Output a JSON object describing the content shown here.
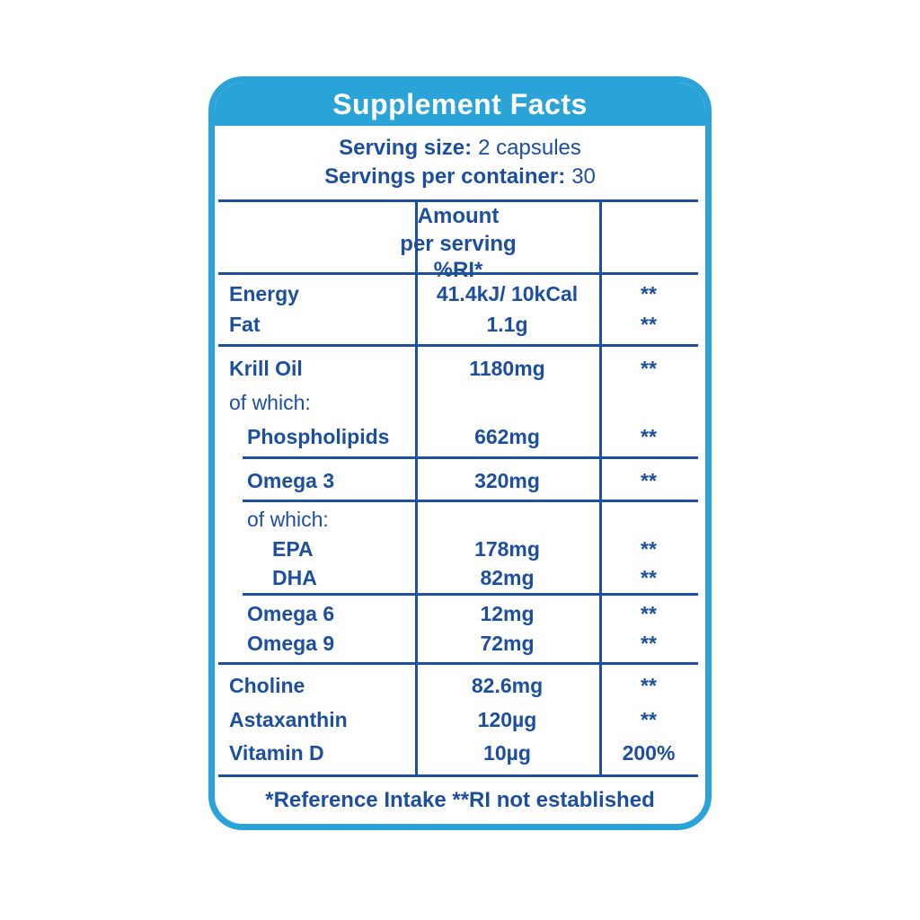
{
  "colors": {
    "accent_cyan": "#2aa3d8",
    "text_blue": "#1c4f9e",
    "rule_blue": "#1d509f",
    "header_text": "#ffffff",
    "background": "#ffffff"
  },
  "panel": {
    "title": "Supplement Facts",
    "serving_size_label": "Serving size:",
    "serving_size_value": "2 capsules",
    "servings_per_container_label": "Servings per container:",
    "servings_per_container_value": "30",
    "footer_note": "*Reference Intake **RI not established"
  },
  "table": {
    "header": {
      "amount_line1": "Amount",
      "amount_line2": "per serving",
      "ri_label": "%RI*"
    },
    "groups": [
      {
        "rows": [
          {
            "label": "Energy",
            "amount": "41.4kJ/ 10kCal",
            "ri": "**"
          },
          {
            "label": "Fat",
            "amount": "1.1g",
            "ri": "**"
          }
        ]
      },
      {
        "rows": [
          {
            "label": "Krill Oil",
            "amount": "1180mg",
            "ri": "**"
          },
          {
            "label": "of which:",
            "amount": "",
            "ri": ""
          },
          {
            "label": "Phospholipids",
            "amount": "662mg",
            "ri": "**"
          }
        ]
      },
      {
        "rows": [
          {
            "label": "Omega 3",
            "amount": "320mg",
            "ri": "**"
          }
        ]
      },
      {
        "rows": [
          {
            "label": "of which:",
            "amount": "",
            "ri": ""
          },
          {
            "label": "EPA",
            "amount": "178mg",
            "ri": "**"
          },
          {
            "label": "DHA",
            "amount": "82mg",
            "ri": "**"
          }
        ]
      },
      {
        "rows": [
          {
            "label": "Omega 6",
            "amount": "12mg",
            "ri": "**"
          },
          {
            "label": "Omega 9",
            "amount": "72mg",
            "ri": "**"
          }
        ]
      },
      {
        "rows": [
          {
            "label": "Choline",
            "amount": "82.6mg",
            "ri": "**"
          },
          {
            "label": "Astaxanthin",
            "amount": "120µg",
            "ri": "**"
          },
          {
            "label": "Vitamin D",
            "amount": "10µg",
            "ri": "200%"
          }
        ]
      }
    ]
  }
}
